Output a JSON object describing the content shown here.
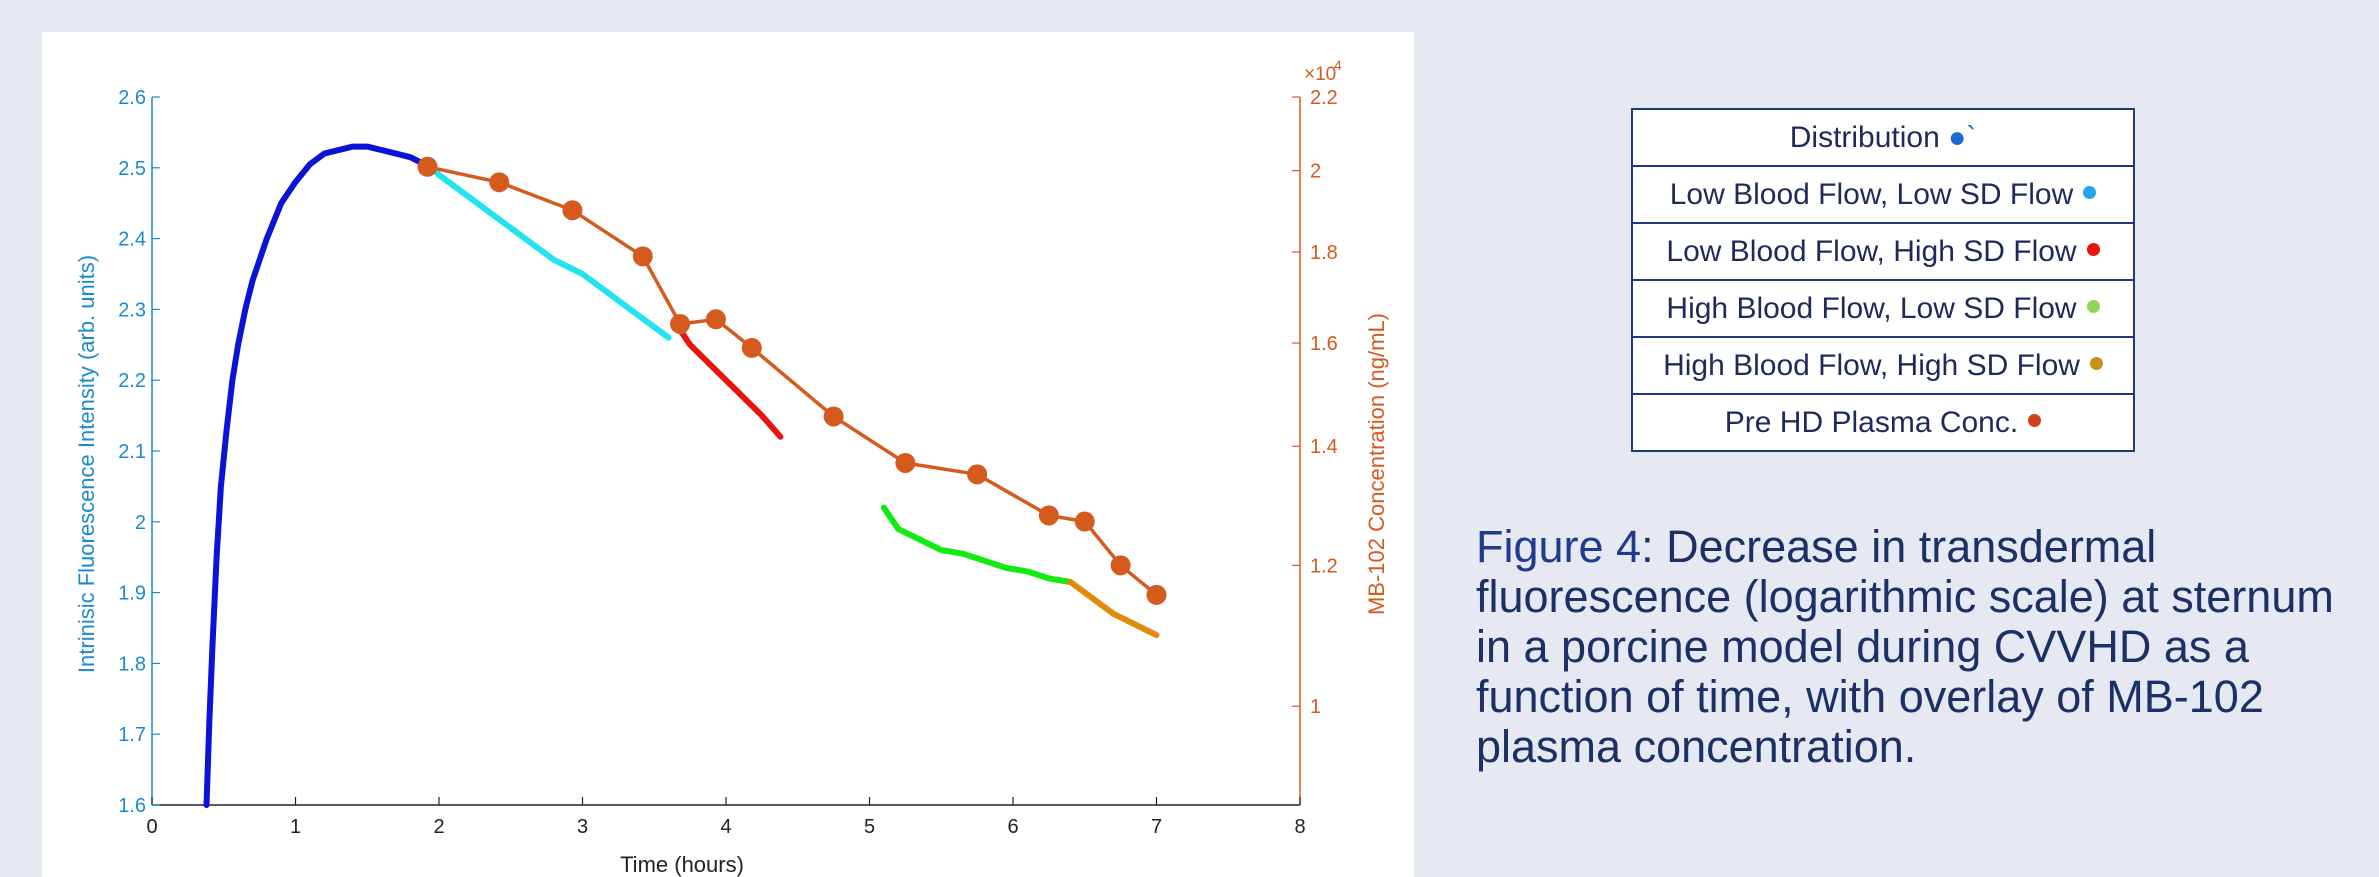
{
  "chart_data": {
    "type": "line",
    "xlabel": "Time (hours)",
    "ylabel": "Intrinisic Fluorescence Intensity (arb. units)",
    "y2label": "MB-102 Concentration (ng/mL)",
    "y2_exponent_label": "×10",
    "y2_exponent_power": "4",
    "xlim": [
      0,
      8
    ],
    "ylim": [
      1.6,
      2.6
    ],
    "y2lim": [
      8800,
      22000
    ],
    "y2_scale": "log",
    "x_ticks": [
      "0",
      "1",
      "2",
      "3",
      "4",
      "5",
      "6",
      "7",
      "8"
    ],
    "y_ticks": [
      "1.6",
      "1.7",
      "1.8",
      "1.9",
      "2",
      "2.1",
      "2.2",
      "2.3",
      "2.4",
      "2.5",
      "2.6"
    ],
    "y2_ticks": [
      {
        "value": 10000,
        "label": "1"
      },
      {
        "value": 12000,
        "label": "1.2"
      },
      {
        "value": 14000,
        "label": "1.4"
      },
      {
        "value": 16000,
        "label": "1.6"
      },
      {
        "value": 18000,
        "label": "1.8"
      },
      {
        "value": 20000,
        "label": "2"
      },
      {
        "value": 22000,
        "label": "2.2"
      }
    ],
    "series": [
      {
        "key": "distribution",
        "color": "#0a14d8",
        "axis": "left",
        "x": [
          0.38,
          0.4,
          0.42,
          0.45,
          0.48,
          0.52,
          0.56,
          0.6,
          0.65,
          0.7,
          0.75,
          0.8,
          0.9,
          1.0,
          1.1,
          1.2,
          1.3,
          1.4,
          1.5,
          1.6,
          1.7,
          1.8,
          1.9
        ],
        "y": [
          1.6,
          1.72,
          1.82,
          1.95,
          2.05,
          2.13,
          2.2,
          2.25,
          2.3,
          2.34,
          2.37,
          2.4,
          2.45,
          2.48,
          2.505,
          2.52,
          2.525,
          2.53,
          2.53,
          2.525,
          2.52,
          2.515,
          2.505
        ]
      },
      {
        "key": "low-low",
        "color": "#22e4f0",
        "axis": "left",
        "x": [
          1.9,
          2.0,
          2.2,
          2.4,
          2.6,
          2.8,
          3.0,
          3.2,
          3.4,
          3.6
        ],
        "y": [
          2.51,
          2.49,
          2.46,
          2.43,
          2.4,
          2.37,
          2.35,
          2.32,
          2.29,
          2.26
        ]
      },
      {
        "key": "low-high",
        "color": "#e8140e",
        "axis": "left",
        "x": [
          3.65,
          3.75,
          3.85,
          3.95,
          4.05,
          4.15,
          4.25,
          4.38
        ],
        "y": [
          2.28,
          2.25,
          2.23,
          2.21,
          2.19,
          2.17,
          2.15,
          2.12
        ]
      },
      {
        "key": "high-low",
        "color": "#12ea12",
        "axis": "left",
        "x": [
          5.1,
          5.2,
          5.35,
          5.5,
          5.65,
          5.8,
          5.95,
          6.1,
          6.25,
          6.4
        ],
        "y": [
          2.02,
          1.99,
          1.975,
          1.96,
          1.955,
          1.945,
          1.935,
          1.93,
          1.92,
          1.915
        ]
      },
      {
        "key": "high-high",
        "color": "#e08a0e",
        "axis": "left",
        "x": [
          6.4,
          6.5,
          6.6,
          6.7,
          6.8,
          6.9,
          7.0
        ],
        "y": [
          1.915,
          1.9,
          1.885,
          1.87,
          1.86,
          1.85,
          1.84
        ]
      },
      {
        "key": "pre-hd",
        "color": "#d55a1e",
        "axis": "right",
        "markers": true,
        "x": [
          1.92,
          2.42,
          2.93,
          3.42,
          3.68,
          3.93,
          4.18,
          4.75,
          5.25,
          5.75,
          6.25,
          6.5,
          6.75,
          7.0
        ],
        "y": [
          20100,
          19700,
          19000,
          17900,
          16400,
          16500,
          15900,
          14550,
          13700,
          13500,
          12800,
          12700,
          12000,
          11550
        ]
      }
    ]
  },
  "legend": {
    "rows": [
      {
        "label": "Distribution",
        "suffix": " ●`",
        "color": "#1a6bd4"
      },
      {
        "label": "Low Blood Flow, Low SD Flow",
        "suffix": "",
        "color": "#22a6e8"
      },
      {
        "label": "Low Blood Flow, High SD Flow",
        "suffix": "",
        "color": "#e8140e"
      },
      {
        "label": "High Blood Flow, Low SD Flow",
        "suffix": "",
        "color": "#8dd458"
      },
      {
        "label": "High Blood Flow, High SD Flow",
        "suffix": "",
        "color": "#c8921a"
      },
      {
        "label": "Pre HD Plasma Conc.",
        "suffix": "",
        "color": "#d0401a"
      }
    ]
  },
  "caption": {
    "label": "Figure 4",
    "text": ": Decrease in transdermal fluorescence (logarithmic scale) at sternum in a porcine model during CVVHD as a function of time, with overlay of MB-102 plasma concentration."
  }
}
